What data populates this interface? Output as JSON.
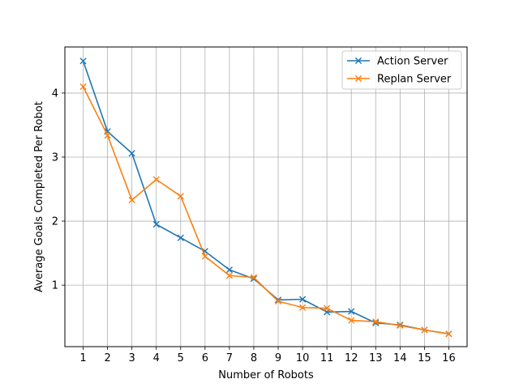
{
  "chart_data": {
    "type": "line",
    "title": "",
    "xlabel": "Number of Robots",
    "ylabel": "Average Goals Completed Per Robot",
    "x": [
      1,
      2,
      3,
      4,
      5,
      6,
      7,
      8,
      9,
      10,
      11,
      12,
      13,
      14,
      15,
      16
    ],
    "xlim": [
      0.25,
      16.75
    ],
    "ylim": [
      0.04,
      4.72
    ],
    "yticks": [
      1,
      2,
      3,
      4
    ],
    "grid": true,
    "legend_position": "upper right",
    "series": [
      {
        "name": "Action Server",
        "color": "#1f77b4",
        "marker": "x",
        "values": [
          4.5,
          3.4,
          3.06,
          1.95,
          1.74,
          1.53,
          1.24,
          1.1,
          0.77,
          0.78,
          0.58,
          0.59,
          0.41,
          0.38,
          0.3,
          0.24
        ]
      },
      {
        "name": "Replan Server",
        "color": "#ff7f0e",
        "marker": "x",
        "values": [
          4.1,
          3.34,
          2.33,
          2.65,
          2.39,
          1.45,
          1.15,
          1.12,
          0.75,
          0.65,
          0.64,
          0.45,
          0.43,
          0.37,
          0.3,
          0.24
        ]
      }
    ]
  }
}
